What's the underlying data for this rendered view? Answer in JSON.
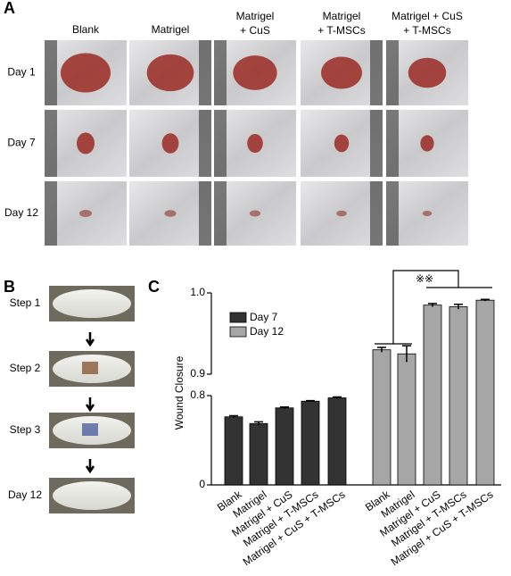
{
  "panel_a": {
    "letter": "A",
    "columns": [
      [
        "Blank"
      ],
      [
        "Matrigel"
      ],
      [
        "Matrigel",
        "+ CuS"
      ],
      [
        "Matrigel",
        "+ T-MSCs"
      ],
      [
        "Matrigel + CuS",
        "+ T-MSCs"
      ]
    ],
    "rows": [
      "Day 1",
      "Day 7",
      "Day 12"
    ]
  },
  "panel_b": {
    "letter": "B",
    "steps": [
      "Step 1",
      "Step 2",
      "Step 3",
      "Day 12"
    ]
  },
  "chart_data": {
    "type": "bar",
    "letter": "C",
    "ylabel": "Wound Closure",
    "categories": [
      "Blank",
      "Matrigel",
      "Matrigel + CuS",
      "Matrigel + T-MSCs",
      "Matrigel + CuS + T-MSCs"
    ],
    "series": [
      {
        "name": "Day 7",
        "color": "#333333",
        "values": [
          0.61,
          0.55,
          0.69,
          0.75,
          0.78
        ],
        "errors": [
          0.01,
          0.015,
          0.008,
          0.005,
          0.008
        ]
      },
      {
        "name": "Day 12",
        "color": "#a6a6a6",
        "values": [
          0.93,
          0.925,
          0.985,
          0.983,
          0.991
        ],
        "errors": [
          0.003,
          0.01,
          0.002,
          0.003,
          0.001
        ]
      }
    ],
    "ylim": [
      0,
      {
        "value": 1,
        "label": "1.0"
      }
    ],
    "y_break": [
      0.8,
      0.9
    ],
    "yticks": [
      0,
      0.8,
      0.9,
      {
        "value": 1,
        "label": "1.0"
      }
    ],
    "significance": "※※"
  }
}
